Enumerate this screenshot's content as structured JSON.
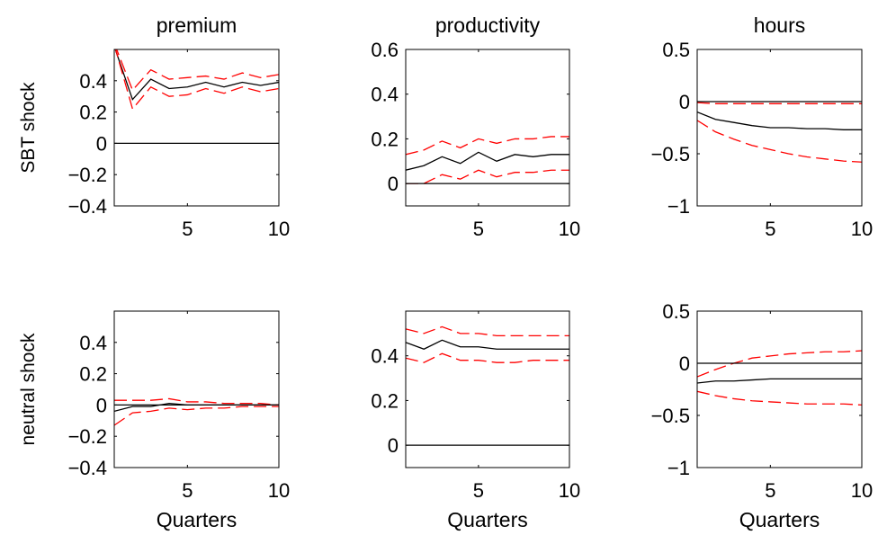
{
  "chart_data": [
    {
      "type": "line",
      "title": "premium",
      "row_label": "SBT shock",
      "xlabel": "",
      "xlim": [
        1,
        10
      ],
      "ylim": [
        -0.4,
        0.6
      ],
      "xticks": [
        5,
        10
      ],
      "yticks": [
        -0.4,
        -0.2,
        0,
        0.2,
        0.4
      ],
      "x": [
        1,
        2,
        3,
        4,
        5,
        6,
        7,
        8,
        9,
        10
      ],
      "series": [
        {
          "role": "response",
          "color": "#000000",
          "style": "solid",
          "values": [
            0.62,
            0.28,
            0.41,
            0.35,
            0.36,
            0.39,
            0.36,
            0.39,
            0.37,
            0.39
          ]
        },
        {
          "role": "upper-band",
          "color": "#ff0000",
          "style": "dashed",
          "values": [
            0.64,
            0.34,
            0.47,
            0.41,
            0.42,
            0.43,
            0.41,
            0.45,
            0.42,
            0.44
          ]
        },
        {
          "role": "lower-band",
          "color": "#ff0000",
          "style": "dashed",
          "values": [
            0.63,
            0.22,
            0.36,
            0.3,
            0.31,
            0.35,
            0.32,
            0.36,
            0.33,
            0.35
          ]
        },
        {
          "role": "zero-line",
          "color": "#000000",
          "style": "solid",
          "values": [
            0,
            0,
            0,
            0,
            0,
            0,
            0,
            0,
            0,
            0
          ]
        }
      ]
    },
    {
      "type": "line",
      "title": "productivity",
      "xlabel": "",
      "xlim": [
        1,
        10
      ],
      "ylim": [
        -0.1,
        0.6
      ],
      "xticks": [
        5,
        10
      ],
      "yticks": [
        0,
        0.2,
        0.4,
        0.6
      ],
      "x": [
        1,
        2,
        3,
        4,
        5,
        6,
        7,
        8,
        9,
        10
      ],
      "series": [
        {
          "role": "response",
          "color": "#000000",
          "style": "solid",
          "values": [
            0.06,
            0.08,
            0.12,
            0.09,
            0.14,
            0.1,
            0.13,
            0.12,
            0.13,
            0.13
          ]
        },
        {
          "role": "upper-band",
          "color": "#ff0000",
          "style": "dashed",
          "values": [
            0.13,
            0.15,
            0.19,
            0.16,
            0.2,
            0.18,
            0.2,
            0.2,
            0.21,
            0.21
          ]
        },
        {
          "role": "lower-band",
          "color": "#ff0000",
          "style": "dashed",
          "values": [
            0.0,
            0.0,
            0.04,
            0.02,
            0.06,
            0.03,
            0.05,
            0.05,
            0.06,
            0.06
          ]
        },
        {
          "role": "zero-line",
          "color": "#000000",
          "style": "solid",
          "values": [
            0,
            0,
            0,
            0,
            0,
            0,
            0,
            0,
            0,
            0
          ]
        }
      ]
    },
    {
      "type": "line",
      "title": "hours",
      "xlabel": "",
      "xlim": [
        1,
        10
      ],
      "ylim": [
        -1,
        0.5
      ],
      "xticks": [
        5,
        10
      ],
      "yticks": [
        -1,
        -0.5,
        0,
        0.5
      ],
      "x": [
        1,
        2,
        3,
        4,
        5,
        6,
        7,
        8,
        9,
        10
      ],
      "series": [
        {
          "role": "response",
          "color": "#000000",
          "style": "solid",
          "values": [
            -0.1,
            -0.17,
            -0.2,
            -0.23,
            -0.25,
            -0.25,
            -0.26,
            -0.26,
            -0.27,
            -0.27
          ]
        },
        {
          "role": "upper-band",
          "color": "#ff0000",
          "style": "dashed",
          "values": [
            -0.01,
            -0.02,
            -0.02,
            -0.02,
            -0.02,
            -0.02,
            -0.02,
            -0.02,
            -0.02,
            -0.02
          ]
        },
        {
          "role": "lower-band",
          "color": "#ff0000",
          "style": "dashed",
          "values": [
            -0.18,
            -0.29,
            -0.36,
            -0.42,
            -0.46,
            -0.5,
            -0.53,
            -0.55,
            -0.57,
            -0.58
          ]
        },
        {
          "role": "zero-line",
          "color": "#000000",
          "style": "solid",
          "values": [
            0,
            0,
            0,
            0,
            0,
            0,
            0,
            0,
            0,
            0
          ]
        }
      ]
    },
    {
      "type": "line",
      "title": "",
      "row_label": "neutral shock",
      "xlabel": "Quarters",
      "xlim": [
        1,
        10
      ],
      "ylim": [
        -0.4,
        0.6
      ],
      "xticks": [
        5,
        10
      ],
      "yticks": [
        -0.4,
        -0.2,
        0,
        0.2,
        0.4
      ],
      "x": [
        1,
        2,
        3,
        4,
        5,
        6,
        7,
        8,
        9,
        10
      ],
      "series": [
        {
          "role": "response",
          "color": "#000000",
          "style": "solid",
          "values": [
            -0.04,
            -0.01,
            -0.01,
            0.01,
            0.0,
            0.0,
            0.0,
            0.0,
            0.0,
            0.0
          ]
        },
        {
          "role": "upper-band",
          "color": "#ff0000",
          "style": "dashed",
          "values": [
            0.03,
            0.03,
            0.03,
            0.04,
            0.02,
            0.02,
            0.01,
            0.01,
            0.01,
            0.0
          ]
        },
        {
          "role": "lower-band",
          "color": "#ff0000",
          "style": "dashed",
          "values": [
            -0.13,
            -0.05,
            -0.04,
            -0.02,
            -0.03,
            -0.02,
            -0.02,
            -0.01,
            -0.01,
            -0.01
          ]
        },
        {
          "role": "zero-line",
          "color": "#000000",
          "style": "solid",
          "values": [
            0,
            0,
            0,
            0,
            0,
            0,
            0,
            0,
            0,
            0
          ]
        }
      ]
    },
    {
      "type": "line",
      "title": "",
      "xlabel": "Quarters",
      "xlim": [
        1,
        10
      ],
      "ylim": [
        -0.1,
        0.6
      ],
      "xticks": [
        5,
        10
      ],
      "yticks": [
        0,
        0.2,
        0.4
      ],
      "x": [
        1,
        2,
        3,
        4,
        5,
        6,
        7,
        8,
        9,
        10
      ],
      "series": [
        {
          "role": "response",
          "color": "#000000",
          "style": "solid",
          "values": [
            0.46,
            0.43,
            0.47,
            0.44,
            0.44,
            0.43,
            0.43,
            0.43,
            0.43,
            0.43
          ]
        },
        {
          "role": "upper-band",
          "color": "#ff0000",
          "style": "dashed",
          "values": [
            0.52,
            0.5,
            0.53,
            0.5,
            0.5,
            0.49,
            0.49,
            0.49,
            0.49,
            0.49
          ]
        },
        {
          "role": "lower-band",
          "color": "#ff0000",
          "style": "dashed",
          "values": [
            0.39,
            0.37,
            0.41,
            0.38,
            0.38,
            0.37,
            0.37,
            0.38,
            0.38,
            0.38
          ]
        },
        {
          "role": "zero-line",
          "color": "#000000",
          "style": "solid",
          "values": [
            0,
            0,
            0,
            0,
            0,
            0,
            0,
            0,
            0,
            0
          ]
        }
      ]
    },
    {
      "type": "line",
      "title": "",
      "xlabel": "Quarters",
      "xlim": [
        1,
        10
      ],
      "ylim": [
        -1,
        0.5
      ],
      "xticks": [
        5,
        10
      ],
      "yticks": [
        -1,
        -0.5,
        0,
        0.5
      ],
      "x": [
        1,
        2,
        3,
        4,
        5,
        6,
        7,
        8,
        9,
        10
      ],
      "series": [
        {
          "role": "response",
          "color": "#000000",
          "style": "solid",
          "values": [
            -0.19,
            -0.17,
            -0.17,
            -0.16,
            -0.15,
            -0.15,
            -0.15,
            -0.15,
            -0.15,
            -0.15
          ]
        },
        {
          "role": "upper-band",
          "color": "#ff0000",
          "style": "dashed",
          "values": [
            -0.13,
            -0.06,
            0.0,
            0.05,
            0.07,
            0.09,
            0.1,
            0.11,
            0.11,
            0.12
          ]
        },
        {
          "role": "lower-band",
          "color": "#ff0000",
          "style": "dashed",
          "values": [
            -0.27,
            -0.31,
            -0.34,
            -0.36,
            -0.37,
            -0.38,
            -0.39,
            -0.39,
            -0.39,
            -0.4
          ]
        },
        {
          "role": "zero-line",
          "color": "#000000",
          "style": "solid",
          "values": [
            0,
            0,
            0,
            0,
            0,
            0,
            0,
            0,
            0,
            0
          ]
        }
      ]
    }
  ]
}
